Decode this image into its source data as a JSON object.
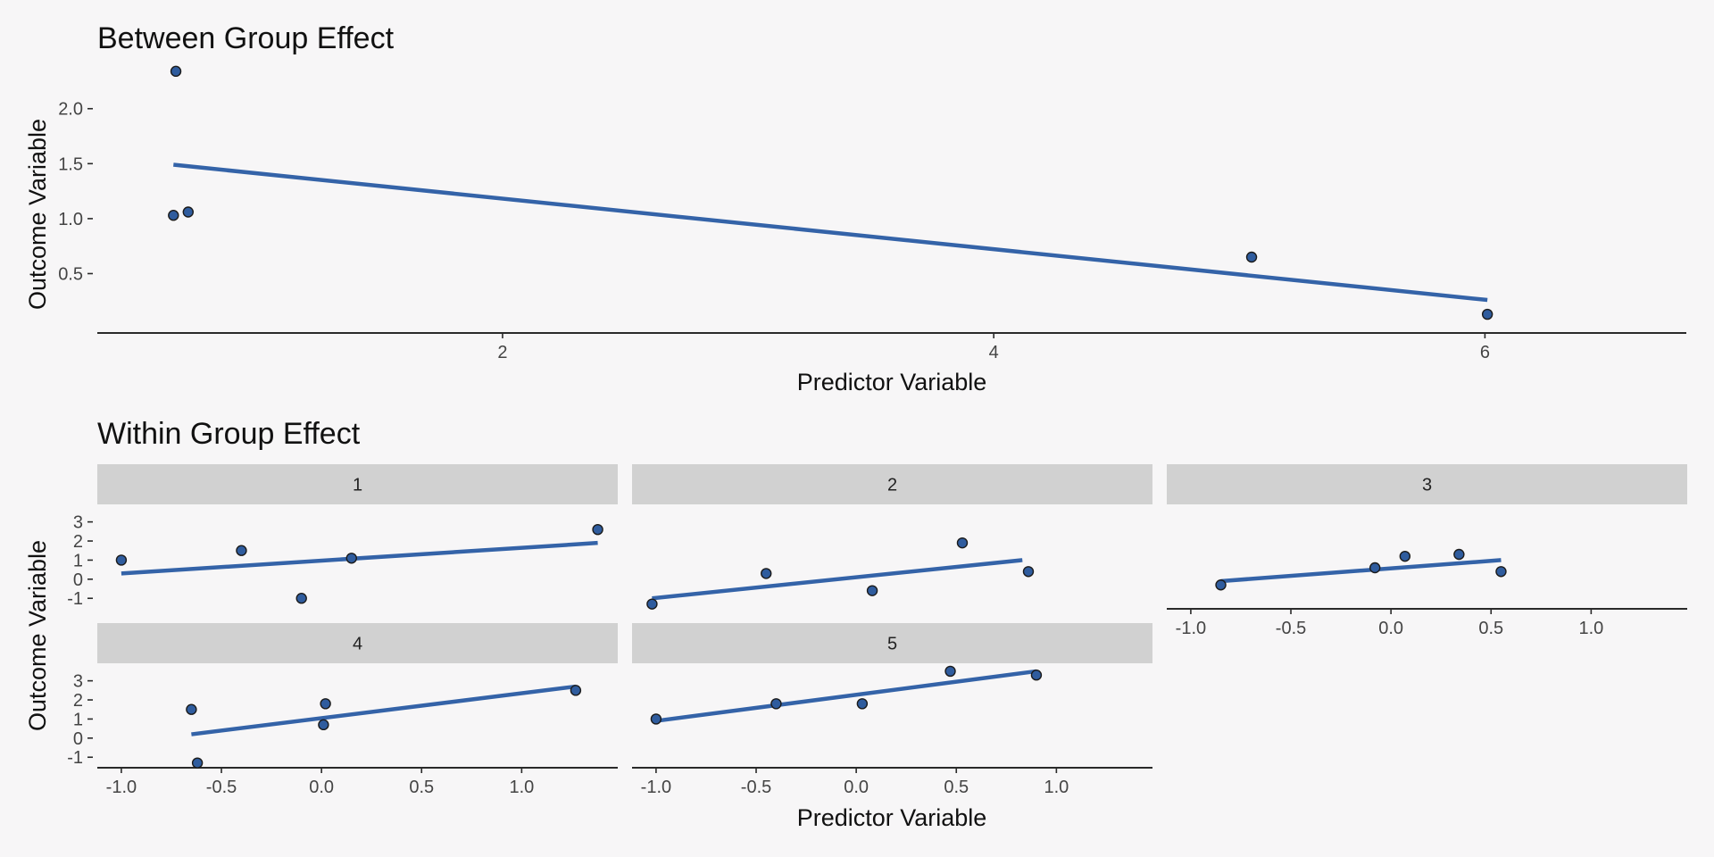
{
  "chart_data": [
    {
      "type": "scatter",
      "title": "Between Group Effect",
      "xlabel": "Predictor Variable",
      "ylabel": "Outcome Variable",
      "xlim": [
        0.35,
        6.82
      ],
      "ylim": [
        -0.04,
        2.42
      ],
      "xticks": [
        2,
        4,
        6
      ],
      "xtick_labels": [
        "2",
        "4",
        "6"
      ],
      "yticks": [
        0.5,
        1.0,
        1.5,
        2.0
      ],
      "ytick_labels": [
        "0.5",
        "1.0",
        "1.5",
        "2.0"
      ],
      "grid": false,
      "legend": "none",
      "point_color": "#2f5c9e",
      "line_color": "#3463a8",
      "points": [
        [
          0.67,
          2.34
        ],
        [
          0.66,
          1.03
        ],
        [
          0.72,
          1.06
        ],
        [
          5.05,
          0.65
        ],
        [
          6.01,
          0.13
        ]
      ],
      "fit": [
        [
          0.66,
          1.49
        ],
        [
          6.01,
          0.26
        ]
      ]
    },
    {
      "type": "scatter",
      "title": "Within Group Effect",
      "xlabel": "Predictor Variable",
      "ylabel": "Outcome Variable",
      "xlim": [
        -1.12,
        1.48
      ],
      "ylim": [
        -1.55,
        3.45
      ],
      "xticks": [
        -1.0,
        -0.5,
        0.0,
        0.5,
        1.0
      ],
      "xtick_labels": [
        "-1.0",
        "-0.5",
        "0.0",
        "0.5",
        "1.0"
      ],
      "yticks": [
        -1,
        0,
        1,
        2,
        3
      ],
      "ytick_labels": [
        "-1",
        "0",
        "1",
        "2",
        "3"
      ],
      "grid": false,
      "legend": "none",
      "point_color": "#2f5c9e",
      "line_color": "#3463a8",
      "facets": [
        {
          "label": "1",
          "points": [
            [
              -1.0,
              1.0
            ],
            [
              -0.4,
              1.5
            ],
            [
              -0.1,
              -1.0
            ],
            [
              0.15,
              1.1
            ],
            [
              1.38,
              2.6
            ]
          ],
          "fit": [
            [
              -1.0,
              0.3
            ],
            [
              1.38,
              1.9
            ]
          ]
        },
        {
          "label": "2",
          "points": [
            [
              -1.02,
              -1.3
            ],
            [
              -0.45,
              0.3
            ],
            [
              0.08,
              -0.6
            ],
            [
              0.53,
              1.9
            ],
            [
              0.86,
              0.4
            ]
          ],
          "fit": [
            [
              -1.02,
              -1.0
            ],
            [
              0.83,
              1.0
            ]
          ]
        },
        {
          "label": "3",
          "points": [
            [
              -0.85,
              -0.3
            ],
            [
              -0.08,
              0.6
            ],
            [
              0.07,
              1.2
            ],
            [
              0.34,
              1.3
            ],
            [
              0.55,
              0.4
            ]
          ],
          "fit": [
            [
              -0.85,
              -0.1
            ],
            [
              0.55,
              1.0
            ]
          ]
        },
        {
          "label": "4",
          "points": [
            [
              -0.65,
              1.5
            ],
            [
              -0.62,
              -1.3
            ],
            [
              0.02,
              1.8
            ],
            [
              0.01,
              0.7
            ],
            [
              1.27,
              2.5
            ]
          ],
          "fit": [
            [
              -0.65,
              0.2
            ],
            [
              1.27,
              2.7
            ]
          ]
        },
        {
          "label": "5",
          "points": [
            [
              -1.0,
              1.0
            ],
            [
              -0.4,
              1.8
            ],
            [
              0.03,
              1.8
            ],
            [
              0.47,
              3.5
            ],
            [
              0.9,
              3.3
            ]
          ],
          "fit": [
            [
              -1.0,
              0.9
            ],
            [
              0.9,
              3.5
            ]
          ]
        }
      ]
    }
  ]
}
